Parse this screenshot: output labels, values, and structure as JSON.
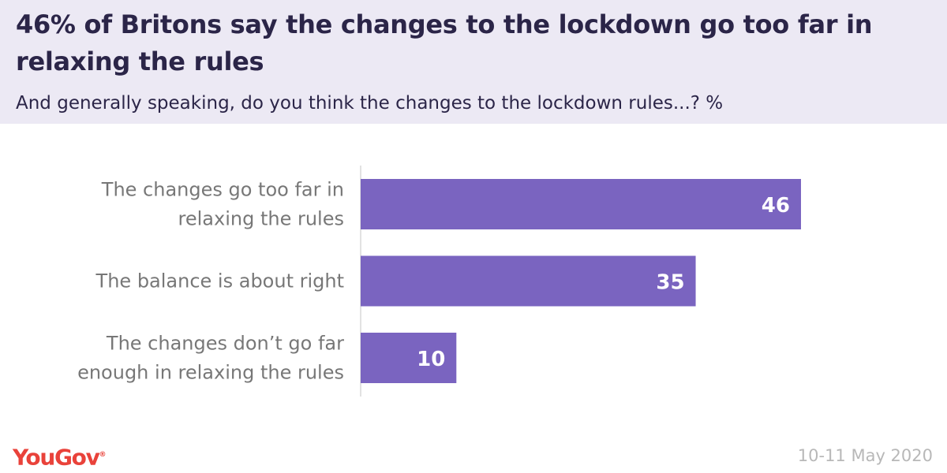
{
  "header": {
    "title": "46% of Britons say the changes to the lockdown go too far in relaxing the rules",
    "subtitle": "And generally speaking, do you think the changes to the lockdown rules...? %"
  },
  "chart_data": {
    "type": "bar",
    "orientation": "horizontal",
    "categories": [
      [
        "The changes go too far in",
        "relaxing the rules"
      ],
      [
        "The balance is about right"
      ],
      [
        "The changes don’t go far",
        "enough in relaxing the rules"
      ]
    ],
    "values": [
      46,
      35,
      10
    ],
    "bar_color": "#7a64c0",
    "xlim": [
      0,
      56
    ],
    "grid": false,
    "legend": "none"
  },
  "footer": {
    "logo_text": "YouGov",
    "logo_mark": "®",
    "date": "10-11 May 2020"
  },
  "colors": {
    "header_bg": "#ece9f4",
    "title": "#2b2548",
    "category_text": "#777777",
    "logo": "#e9423a",
    "date": "#b8b8b8"
  }
}
